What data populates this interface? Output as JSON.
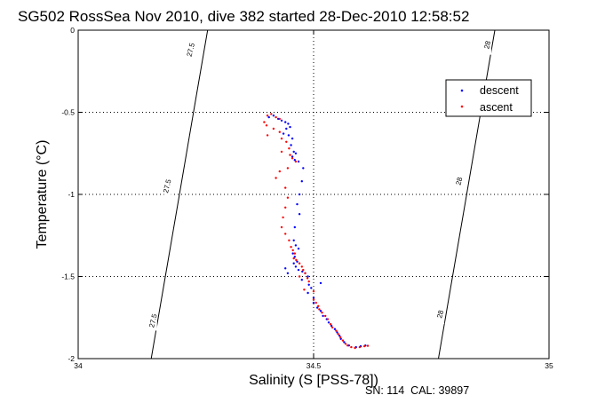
{
  "chart_data": {
    "type": "scatter",
    "title": "SG502 RossSea Nov 2010, dive 382 started 28-Dec-2010 12:58:52",
    "xlabel": "Salinity (S [PSS-78])",
    "ylabel": "Temperature (°C)",
    "xlim": [
      34,
      35
    ],
    "ylim": [
      -2,
      0
    ],
    "x_ticks": [
      "34",
      "34.5",
      "35"
    ],
    "y_ticks": [
      "0",
      "-0.5",
      "-1",
      "-1.5",
      "-2"
    ],
    "grid": true,
    "grid_style": "dotted",
    "legend_position": "top-right",
    "footnote": "SN: 114  CAL: 39897",
    "density_contours": [
      {
        "label": "27.5",
        "points": [
          [
            34.155,
            -2.0
          ],
          [
            34.185,
            -1.5
          ],
          [
            34.215,
            -1.0
          ],
          [
            34.245,
            -0.5
          ],
          [
            34.275,
            0.0
          ]
        ]
      },
      {
        "label": "28",
        "points": [
          [
            34.765,
            -2.0
          ],
          [
            34.795,
            -1.5
          ],
          [
            34.825,
            -1.0
          ],
          [
            34.855,
            -0.5
          ],
          [
            34.885,
            0.0
          ]
        ]
      }
    ],
    "contour_labels": [
      {
        "text": "27.5",
        "x": 34.24,
        "y": -0.12
      },
      {
        "text": "27.5",
        "x": 34.19,
        "y": -0.95
      },
      {
        "text": "27.5",
        "x": 34.16,
        "y": -1.77
      },
      {
        "text": "28",
        "x": 34.87,
        "y": -0.09
      },
      {
        "text": "28",
        "x": 34.81,
        "y": -0.92
      },
      {
        "text": "28",
        "x": 34.77,
        "y": -1.73
      }
    ],
    "series": [
      {
        "name": "descent",
        "color": "#0000ff",
        "points": [
          [
            34.405,
            -0.53
          ],
          [
            34.415,
            -0.52
          ],
          [
            34.425,
            -0.54
          ],
          [
            34.432,
            -0.55
          ],
          [
            34.44,
            -0.56
          ],
          [
            34.446,
            -0.57
          ],
          [
            34.45,
            -0.59
          ],
          [
            34.442,
            -0.6
          ],
          [
            34.436,
            -0.63
          ],
          [
            34.447,
            -0.64
          ],
          [
            34.455,
            -0.66
          ],
          [
            34.452,
            -0.7
          ],
          [
            34.458,
            -0.74
          ],
          [
            34.462,
            -0.75
          ],
          [
            34.455,
            -0.77
          ],
          [
            34.46,
            -0.79
          ],
          [
            34.468,
            -0.8
          ],
          [
            34.478,
            -0.84
          ],
          [
            34.475,
            -0.92
          ],
          [
            34.47,
            -1.0
          ],
          [
            34.465,
            -1.06
          ],
          [
            34.47,
            -1.12
          ],
          [
            34.46,
            -1.2
          ],
          [
            34.458,
            -1.28
          ],
          [
            34.462,
            -1.31
          ],
          [
            34.468,
            -1.33
          ],
          [
            34.456,
            -1.36
          ],
          [
            34.46,
            -1.38
          ],
          [
            34.465,
            -1.41
          ],
          [
            34.458,
            -1.42
          ],
          [
            34.462,
            -1.44
          ],
          [
            34.468,
            -1.46
          ],
          [
            34.476,
            -1.47
          ],
          [
            34.482,
            -1.48
          ],
          [
            34.488,
            -1.5
          ],
          [
            34.475,
            -1.52
          ],
          [
            34.44,
            -1.45
          ],
          [
            34.445,
            -1.48
          ],
          [
            34.49,
            -1.55
          ],
          [
            34.495,
            -1.57
          ],
          [
            34.488,
            -1.6
          ],
          [
            34.5,
            -1.63
          ],
          [
            34.5,
            -1.66
          ],
          [
            34.508,
            -1.69
          ],
          [
            34.515,
            -1.71
          ],
          [
            34.52,
            -1.74
          ],
          [
            34.528,
            -1.76
          ],
          [
            34.532,
            -1.78
          ],
          [
            34.538,
            -1.8
          ],
          [
            34.545,
            -1.82
          ],
          [
            34.55,
            -1.84
          ],
          [
            34.555,
            -1.86
          ],
          [
            34.558,
            -1.88
          ],
          [
            34.565,
            -1.9
          ],
          [
            34.575,
            -1.92
          ],
          [
            34.59,
            -1.93
          ],
          [
            34.6,
            -1.925
          ],
          [
            34.61,
            -1.92
          ],
          [
            34.515,
            -1.54
          ]
        ]
      },
      {
        "name": "ascent",
        "color": "#ff0000",
        "points": [
          [
            34.402,
            -0.52
          ],
          [
            34.41,
            -0.51
          ],
          [
            34.42,
            -0.53
          ],
          [
            34.428,
            -0.54
          ],
          [
            34.395,
            -0.56
          ],
          [
            34.4,
            -0.58
          ],
          [
            34.415,
            -0.6
          ],
          [
            34.428,
            -0.62
          ],
          [
            34.402,
            -0.64
          ],
          [
            34.432,
            -0.66
          ],
          [
            34.442,
            -0.68
          ],
          [
            34.448,
            -0.72
          ],
          [
            34.432,
            -0.74
          ],
          [
            34.45,
            -0.76
          ],
          [
            34.455,
            -0.78
          ],
          [
            34.462,
            -0.8
          ],
          [
            34.445,
            -0.84
          ],
          [
            34.428,
            -0.86
          ],
          [
            34.42,
            -0.9
          ],
          [
            34.44,
            -0.96
          ],
          [
            34.445,
            -1.02
          ],
          [
            34.44,
            -1.08
          ],
          [
            34.435,
            -1.14
          ],
          [
            34.432,
            -1.2
          ],
          [
            34.44,
            -1.24
          ],
          [
            34.448,
            -1.28
          ],
          [
            34.452,
            -1.32
          ],
          [
            34.456,
            -1.34
          ],
          [
            34.46,
            -1.36
          ],
          [
            34.458,
            -1.39
          ],
          [
            34.463,
            -1.4
          ],
          [
            34.47,
            -1.42
          ],
          [
            34.475,
            -1.44
          ],
          [
            34.478,
            -1.46
          ],
          [
            34.482,
            -1.48
          ],
          [
            34.47,
            -1.5
          ],
          [
            34.487,
            -1.51
          ],
          [
            34.49,
            -1.53
          ],
          [
            34.5,
            -1.64
          ],
          [
            34.505,
            -1.66
          ],
          [
            34.51,
            -1.68
          ],
          [
            34.512,
            -1.7
          ],
          [
            34.518,
            -1.72
          ],
          [
            34.525,
            -1.74
          ],
          [
            34.53,
            -1.76
          ],
          [
            34.536,
            -1.79
          ],
          [
            34.54,
            -1.81
          ],
          [
            34.548,
            -1.83
          ],
          [
            34.552,
            -1.85
          ],
          [
            34.557,
            -1.87
          ],
          [
            34.562,
            -1.89
          ],
          [
            34.568,
            -1.91
          ],
          [
            34.572,
            -1.92
          ],
          [
            34.58,
            -1.93
          ],
          [
            34.588,
            -1.935
          ],
          [
            34.598,
            -1.93
          ],
          [
            34.608,
            -1.925
          ],
          [
            34.615,
            -1.922
          ],
          [
            34.48,
            -1.58
          ],
          [
            34.5,
            -1.59
          ]
        ]
      }
    ]
  }
}
